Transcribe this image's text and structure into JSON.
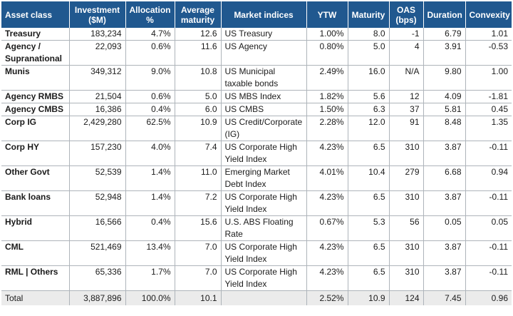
{
  "table": {
    "headers": [
      "Asset class",
      "Investment\n($M)",
      "Allocation\n%",
      "Average\nmaturity",
      "Market indices",
      "YTW",
      "Maturity",
      "OAS\n(bps)",
      "Duration",
      "Convexity"
    ],
    "rows": [
      [
        "Treasury",
        "183,234",
        "4.7%",
        "12.6",
        "US Treasury",
        "1.00%",
        "8.0",
        "-1",
        "6.79",
        "1.01"
      ],
      [
        "Agency / Supranational",
        "22,093",
        "0.6%",
        "11.6",
        "US Agency",
        "0.80%",
        "5.0",
        "4",
        "3.91",
        "-0.53"
      ],
      [
        "Munis",
        "349,312",
        "9.0%",
        "10.8",
        "US Municipal taxable bonds",
        "2.49%",
        "16.0",
        "N/A",
        "9.80",
        "1.00"
      ],
      [
        "Agency RMBS",
        "21,504",
        "0.6%",
        "5.0",
        "US MBS Index",
        "1.82%",
        "5.6",
        "12",
        "4.09",
        "-1.81"
      ],
      [
        "Agency CMBS",
        "16,386",
        "0.4%",
        "6.0",
        "US CMBS",
        "1.50%",
        "6.3",
        "37",
        "5.81",
        "0.45"
      ],
      [
        "Corp IG",
        "2,429,280",
        "62.5%",
        "10.9",
        "US Credit/Corporate (IG)",
        "2.28%",
        "12.0",
        "91",
        "8.48",
        "1.35"
      ],
      [
        "Corp HY",
        "157,230",
        "4.0%",
        "7.4",
        "US Corporate High Yield Index",
        "4.23%",
        "6.5",
        "310",
        "3.87",
        "-0.11"
      ],
      [
        "Other Govt",
        "52,539",
        "1.4%",
        "11.0",
        "Emerging Market Debt Index",
        "4.01%",
        "10.4",
        "279",
        "6.68",
        "0.94"
      ],
      [
        "Bank loans",
        "52,948",
        "1.4%",
        "7.2",
        "US Corporate High Yield Index",
        "4.23%",
        "6.5",
        "310",
        "3.87",
        "-0.11"
      ],
      [
        "Hybrid",
        "16,566",
        "0.4%",
        "15.6",
        "U.S. ABS Floating Rate",
        "0.67%",
        "5.3",
        "56",
        "0.05",
        "0.05"
      ],
      [
        "CML",
        "521,469",
        "13.4%",
        "7.0",
        "US Corporate High Yield Index",
        "4.23%",
        "6.5",
        "310",
        "3.87",
        "-0.11"
      ],
      [
        "RML | Others",
        "65,336",
        "1.7%",
        "7.0",
        "US Corporate High Yield Index",
        "4.23%",
        "6.5",
        "310",
        "3.87",
        "-0.11"
      ]
    ],
    "total": [
      "Total",
      "3,887,896",
      "100.0%",
      "10.1",
      "",
      "2.52%",
      "10.9",
      "124",
      "7.45",
      "0.96"
    ]
  },
  "colors": {
    "header_background": "#20588f",
    "header_text": "#ffffff",
    "total_row_background": "#ebebeb",
    "rule": "#aeb4ba"
  }
}
